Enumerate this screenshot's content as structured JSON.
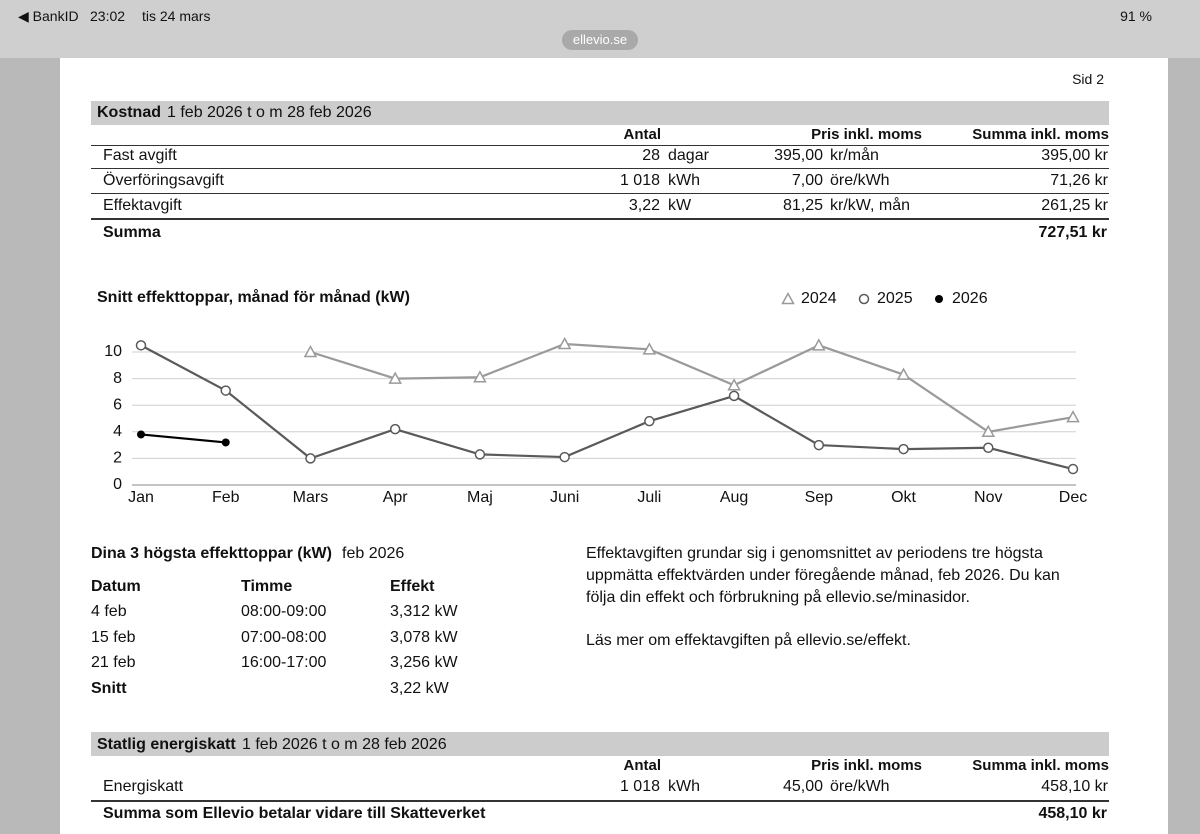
{
  "status_bar": {
    "back": "◀ BankID",
    "time": "23:02",
    "date": "tis 24 mars",
    "battery": "91 %",
    "url": "ellevio.se"
  },
  "page_label": "Sid 2",
  "cost": {
    "title": "Kostnad",
    "period": "1 feb 2026 t o m 28 feb 2026",
    "headers": [
      "Antal",
      "Pris inkl. moms",
      "Summa inkl. moms"
    ],
    "rows": [
      [
        "Fast avgift",
        "28",
        "dagar",
        "395,00",
        "kr/mån",
        "395,00 kr"
      ],
      [
        "Överföringsavgift",
        "1 018",
        "kWh",
        "7,00",
        "öre/kWh",
        "71,26 kr"
      ],
      [
        "Effektavgift",
        "3,22",
        "kW",
        "81,25",
        "kr/kW, mån",
        "261,25 kr"
      ]
    ],
    "total": [
      "Summa",
      "727,51 kr"
    ]
  },
  "chart_data": {
    "type": "line",
    "title": "Snitt effekttoppar, månad för månad (kW)",
    "categories": [
      "Jan",
      "Feb",
      "Mars",
      "Apr",
      "Maj",
      "Juni",
      "Juli",
      "Aug",
      "Sep",
      "Okt",
      "Nov",
      "Dec"
    ],
    "series": [
      {
        "name": "2024",
        "color": "#9a9a9a",
        "marker": "triangle",
        "values": [
          null,
          null,
          10.0,
          8.0,
          8.1,
          10.6,
          10.2,
          7.5,
          10.5,
          8.3,
          4.0,
          5.1
        ]
      },
      {
        "name": "2025",
        "color": "#5a5a5a",
        "marker": "circle",
        "values": [
          10.5,
          7.1,
          2.0,
          4.2,
          2.3,
          2.1,
          4.8,
          6.7,
          3.0,
          2.7,
          2.8,
          1.2
        ]
      },
      {
        "name": "2026",
        "color": "#000000",
        "marker": "dot",
        "values": [
          3.8,
          3.2,
          null,
          null,
          null,
          null,
          null,
          null,
          null,
          null,
          null,
          null
        ]
      }
    ],
    "ylim": [
      0,
      11
    ],
    "yticks": [
      0,
      2,
      4,
      6,
      8,
      10
    ],
    "grid": true,
    "legend": "top-right"
  },
  "peaks": {
    "title": "Dina 3 högsta effekttoppar (kW)",
    "period": "feb 2026",
    "headers": [
      "Datum",
      "Timme",
      "Effekt"
    ],
    "rows": [
      [
        "4 feb",
        "08:00-09:00",
        "3,312 kW"
      ],
      [
        "15 feb",
        "07:00-08:00",
        "3,078 kW"
      ],
      [
        "21 feb",
        "16:00-17:00",
        "3,256 kW"
      ]
    ],
    "average": [
      "Snitt",
      "3,22 kW"
    ]
  },
  "info": {
    "lines": [
      "Effektavgiften grundar sig i genomsnittet av periodens tre högsta",
      "uppmätta effektvärden under föregående månad, feb 2026. Du kan",
      "följa din effekt och förbrukning på ellevio.se/minasidor."
    ],
    "more": "Läs mer om effektavgiften på ellevio.se/effekt."
  },
  "tax": {
    "title": "Statlig energiskatt",
    "period": "1 feb 2026 t o m 28 feb 2026",
    "headers": [
      "Antal",
      "Pris inkl. moms",
      "Summa inkl. moms"
    ],
    "rows": [
      [
        "Energiskatt",
        "1 018",
        "kWh",
        "45,00",
        "öre/kWh",
        "458,10 kr"
      ]
    ],
    "total": [
      "Summa som Ellevio betalar vidare till Skatteverket",
      "458,10 kr"
    ]
  }
}
